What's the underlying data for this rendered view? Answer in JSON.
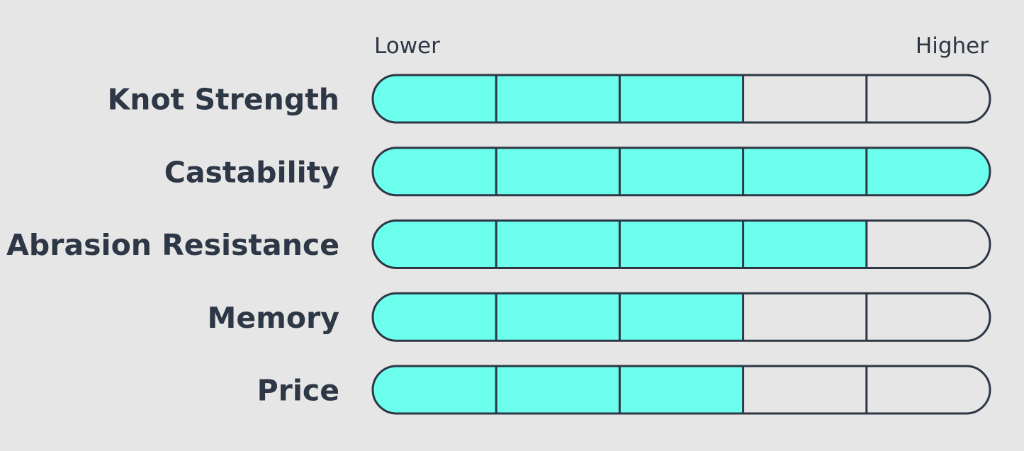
{
  "chart_data": {
    "type": "bar",
    "scale": {
      "min_label": "Lower",
      "max_label": "Higher",
      "segments": 5
    },
    "categories": [
      "Knot Strength",
      "Castability",
      "Abrasion Resistance",
      "Memory",
      "Price"
    ],
    "values": [
      3,
      5,
      4,
      3,
      3
    ],
    "colors": {
      "fill": "#6cffee",
      "empty": "#e6e6e6",
      "outline": "#2d3745",
      "text": "#2d3745"
    }
  }
}
